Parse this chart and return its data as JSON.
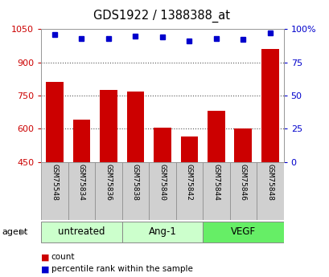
{
  "title": "GDS1922 / 1388388_at",
  "samples": [
    "GSM75548",
    "GSM75834",
    "GSM75836",
    "GSM75838",
    "GSM75840",
    "GSM75842",
    "GSM75844",
    "GSM75846",
    "GSM75848"
  ],
  "counts": [
    810,
    640,
    775,
    770,
    605,
    565,
    680,
    600,
    960
  ],
  "percentiles": [
    96,
    93,
    93,
    95,
    94,
    91,
    93,
    92,
    97
  ],
  "bar_color": "#cc0000",
  "dot_color": "#0000cc",
  "ylim_left": [
    450,
    1050
  ],
  "ylim_right": [
    0,
    100
  ],
  "yticks_left": [
    450,
    600,
    750,
    900,
    1050
  ],
  "yticks_right": [
    0,
    25,
    50,
    75,
    100
  ],
  "ytick_labels_right": [
    "0",
    "25",
    "50",
    "75",
    "100%"
  ],
  "grid_values": [
    600,
    750,
    900
  ],
  "groups": [
    {
      "label": "untreated",
      "start": 0,
      "end": 3,
      "color": "#ccffcc"
    },
    {
      "label": "Ang-1",
      "start": 3,
      "end": 6,
      "color": "#ccffcc"
    },
    {
      "label": "VEGF",
      "start": 6,
      "end": 9,
      "color": "#66ee66"
    }
  ],
  "agent_label": "agent",
  "legend_items": [
    {
      "label": "count",
      "color": "#cc0000"
    },
    {
      "label": "percentile rank within the sample",
      "color": "#0000cc"
    }
  ],
  "bg_color": "#ffffff",
  "tick_label_color_left": "#cc0000",
  "tick_label_color_right": "#0000cc",
  "sample_box_color": "#d0d0d0",
  "sample_box_edge": "#888888"
}
